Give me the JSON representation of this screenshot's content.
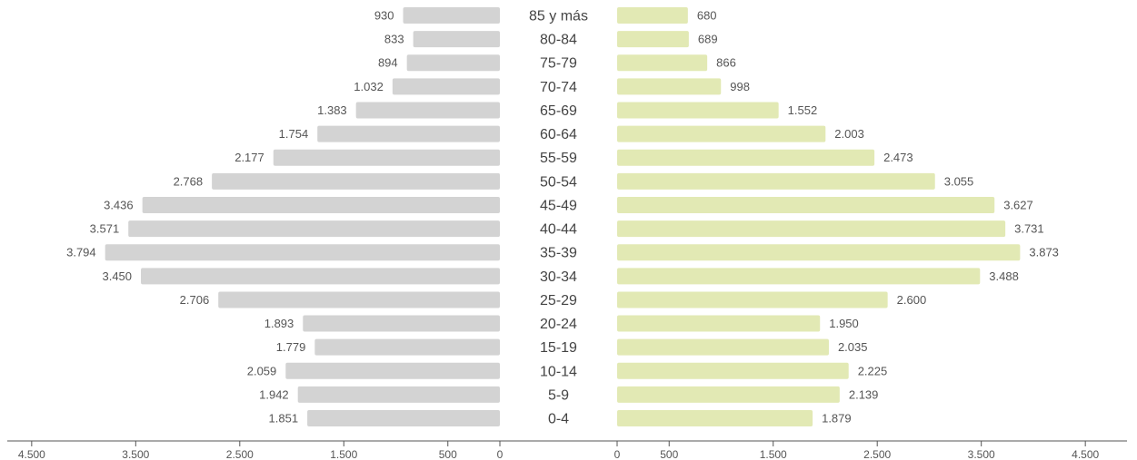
{
  "chart_data": {
    "type": "bar",
    "orientation": "horizontal",
    "layout": "population-pyramid",
    "categories": [
      "85 y más",
      "80-84",
      "75-79",
      "70-74",
      "65-69",
      "60-64",
      "55-59",
      "50-54",
      "45-49",
      "40-44",
      "35-39",
      "30-34",
      "25-29",
      "20-24",
      "15-19",
      "10-14",
      "5-9",
      "0-4"
    ],
    "series": [
      {
        "side": "left",
        "color": "#d3d3d3",
        "values": [
          930,
          833,
          894,
          1032,
          1383,
          1754,
          2177,
          2768,
          3436,
          3571,
          3794,
          3450,
          2706,
          1893,
          1779,
          2059,
          1942,
          1851
        ],
        "labels": [
          "930",
          "833",
          "894",
          "1.032",
          "1.383",
          "1.754",
          "2.177",
          "2.768",
          "3.436",
          "3.571",
          "3.794",
          "3.450",
          "2.706",
          "1.893",
          "1.779",
          "2.059",
          "1.942",
          "1.851"
        ]
      },
      {
        "side": "right",
        "color": "#e2e9b4",
        "values": [
          680,
          689,
          866,
          998,
          1552,
          2003,
          2473,
          3055,
          3627,
          3731,
          3873,
          3488,
          2600,
          1950,
          2035,
          2225,
          2139,
          1879
        ],
        "labels": [
          "680",
          "689",
          "866",
          "998",
          "1.552",
          "2.003",
          "2.473",
          "3.055",
          "3.627",
          "3.731",
          "3.873",
          "3.488",
          "2.600",
          "1.950",
          "2.035",
          "2.225",
          "2.139",
          "1.879"
        ]
      }
    ],
    "xaxis": {
      "left": {
        "values": [
          4500,
          3500,
          2500,
          1500,
          500,
          0
        ],
        "labels": [
          "4.500",
          "3.500",
          "2.500",
          "1.500",
          "500",
          "0"
        ]
      },
      "right": {
        "values": [
          0,
          500,
          1500,
          2500,
          3500,
          4500
        ],
        "labels": [
          "0",
          "500",
          "1.500",
          "2.500",
          "3.500",
          "4.500"
        ]
      }
    },
    "xlim": [
      0,
      4500
    ],
    "grid": false,
    "axis_color": "#555555"
  }
}
